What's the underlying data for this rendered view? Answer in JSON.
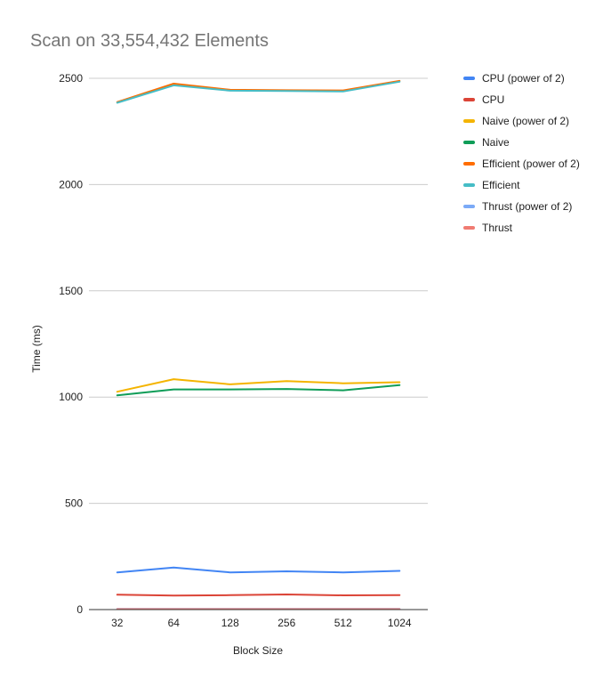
{
  "chart_data": {
    "type": "line",
    "title": "Scan on 33,554,432 Elements",
    "xlabel": "Block Size",
    "ylabel": "Time (ms)",
    "categories": [
      "32",
      "64",
      "128",
      "256",
      "512",
      "1024"
    ],
    "ylim": [
      0,
      2500
    ],
    "yticks": [
      0,
      500,
      1000,
      1500,
      2000,
      2500
    ],
    "grid": true,
    "legend_position": "right",
    "series": [
      {
        "name": "CPU (power of 2)",
        "color": "#4285f4",
        "values": [
          175,
          198,
          175,
          180,
          175,
          182
        ]
      },
      {
        "name": "CPU",
        "color": "#db4437",
        "values": [
          70,
          66,
          68,
          71,
          67,
          68
        ]
      },
      {
        "name": "Naive (power of 2)",
        "color": "#f4b400",
        "values": [
          1025,
          1084,
          1060,
          1075,
          1065,
          1070
        ]
      },
      {
        "name": "Naive",
        "color": "#0f9d58",
        "values": [
          1008,
          1036,
          1036,
          1038,
          1032,
          1056
        ]
      },
      {
        "name": "Efficient (power of 2)",
        "color": "#ff6d00",
        "values": [
          2388,
          2475,
          2446,
          2444,
          2443,
          2488
        ]
      },
      {
        "name": "Efficient",
        "color": "#46bdc6",
        "values": [
          2385,
          2467,
          2442,
          2440,
          2438,
          2484
        ]
      },
      {
        "name": "Thrust (power of 2)",
        "color": "#7baaf7",
        "values": [
          3,
          3,
          3,
          3,
          3,
          3
        ]
      },
      {
        "name": "Thrust",
        "color": "#f07b72",
        "values": [
          2,
          2,
          2,
          2,
          2,
          2
        ]
      }
    ]
  }
}
